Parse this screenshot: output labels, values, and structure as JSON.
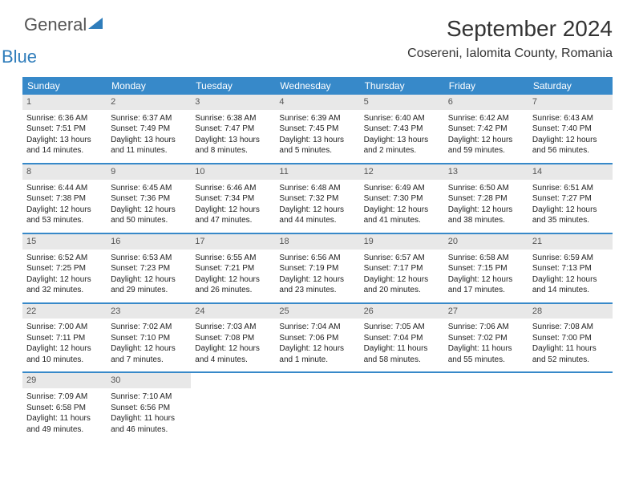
{
  "brand": {
    "part1": "General",
    "part2": "Blue"
  },
  "header": {
    "month": "September 2024",
    "location": "Cosereni, Ialomita County, Romania"
  },
  "calendar": {
    "day_header_bg": "#3789c9",
    "day_header_color": "#ffffff",
    "num_bg": "#e8e8e8",
    "border_color": "#3789c9",
    "days": [
      "Sunday",
      "Monday",
      "Tuesday",
      "Wednesday",
      "Thursday",
      "Friday",
      "Saturday"
    ],
    "weeks": [
      [
        {
          "n": "1",
          "sunrise": "6:36 AM",
          "sunset": "7:51 PM",
          "daylight": "13 hours and 14 minutes."
        },
        {
          "n": "2",
          "sunrise": "6:37 AM",
          "sunset": "7:49 PM",
          "daylight": "13 hours and 11 minutes."
        },
        {
          "n": "3",
          "sunrise": "6:38 AM",
          "sunset": "7:47 PM",
          "daylight": "13 hours and 8 minutes."
        },
        {
          "n": "4",
          "sunrise": "6:39 AM",
          "sunset": "7:45 PM",
          "daylight": "13 hours and 5 minutes."
        },
        {
          "n": "5",
          "sunrise": "6:40 AM",
          "sunset": "7:43 PM",
          "daylight": "13 hours and 2 minutes."
        },
        {
          "n": "6",
          "sunrise": "6:42 AM",
          "sunset": "7:42 PM",
          "daylight": "12 hours and 59 minutes."
        },
        {
          "n": "7",
          "sunrise": "6:43 AM",
          "sunset": "7:40 PM",
          "daylight": "12 hours and 56 minutes."
        }
      ],
      [
        {
          "n": "8",
          "sunrise": "6:44 AM",
          "sunset": "7:38 PM",
          "daylight": "12 hours and 53 minutes."
        },
        {
          "n": "9",
          "sunrise": "6:45 AM",
          "sunset": "7:36 PM",
          "daylight": "12 hours and 50 minutes."
        },
        {
          "n": "10",
          "sunrise": "6:46 AM",
          "sunset": "7:34 PM",
          "daylight": "12 hours and 47 minutes."
        },
        {
          "n": "11",
          "sunrise": "6:48 AM",
          "sunset": "7:32 PM",
          "daylight": "12 hours and 44 minutes."
        },
        {
          "n": "12",
          "sunrise": "6:49 AM",
          "sunset": "7:30 PM",
          "daylight": "12 hours and 41 minutes."
        },
        {
          "n": "13",
          "sunrise": "6:50 AM",
          "sunset": "7:28 PM",
          "daylight": "12 hours and 38 minutes."
        },
        {
          "n": "14",
          "sunrise": "6:51 AM",
          "sunset": "7:27 PM",
          "daylight": "12 hours and 35 minutes."
        }
      ],
      [
        {
          "n": "15",
          "sunrise": "6:52 AM",
          "sunset": "7:25 PM",
          "daylight": "12 hours and 32 minutes."
        },
        {
          "n": "16",
          "sunrise": "6:53 AM",
          "sunset": "7:23 PM",
          "daylight": "12 hours and 29 minutes."
        },
        {
          "n": "17",
          "sunrise": "6:55 AM",
          "sunset": "7:21 PM",
          "daylight": "12 hours and 26 minutes."
        },
        {
          "n": "18",
          "sunrise": "6:56 AM",
          "sunset": "7:19 PM",
          "daylight": "12 hours and 23 minutes."
        },
        {
          "n": "19",
          "sunrise": "6:57 AM",
          "sunset": "7:17 PM",
          "daylight": "12 hours and 20 minutes."
        },
        {
          "n": "20",
          "sunrise": "6:58 AM",
          "sunset": "7:15 PM",
          "daylight": "12 hours and 17 minutes."
        },
        {
          "n": "21",
          "sunrise": "6:59 AM",
          "sunset": "7:13 PM",
          "daylight": "12 hours and 14 minutes."
        }
      ],
      [
        {
          "n": "22",
          "sunrise": "7:00 AM",
          "sunset": "7:11 PM",
          "daylight": "12 hours and 10 minutes."
        },
        {
          "n": "23",
          "sunrise": "7:02 AM",
          "sunset": "7:10 PM",
          "daylight": "12 hours and 7 minutes."
        },
        {
          "n": "24",
          "sunrise": "7:03 AM",
          "sunset": "7:08 PM",
          "daylight": "12 hours and 4 minutes."
        },
        {
          "n": "25",
          "sunrise": "7:04 AM",
          "sunset": "7:06 PM",
          "daylight": "12 hours and 1 minute."
        },
        {
          "n": "26",
          "sunrise": "7:05 AM",
          "sunset": "7:04 PM",
          "daylight": "11 hours and 58 minutes."
        },
        {
          "n": "27",
          "sunrise": "7:06 AM",
          "sunset": "7:02 PM",
          "daylight": "11 hours and 55 minutes."
        },
        {
          "n": "28",
          "sunrise": "7:08 AM",
          "sunset": "7:00 PM",
          "daylight": "11 hours and 52 minutes."
        }
      ],
      [
        {
          "n": "29",
          "sunrise": "7:09 AM",
          "sunset": "6:58 PM",
          "daylight": "11 hours and 49 minutes."
        },
        {
          "n": "30",
          "sunrise": "7:10 AM",
          "sunset": "6:56 PM",
          "daylight": "11 hours and 46 minutes."
        },
        null,
        null,
        null,
        null,
        null
      ]
    ],
    "labels": {
      "sunrise": "Sunrise:",
      "sunset": "Sunset:",
      "daylight": "Daylight:"
    }
  }
}
